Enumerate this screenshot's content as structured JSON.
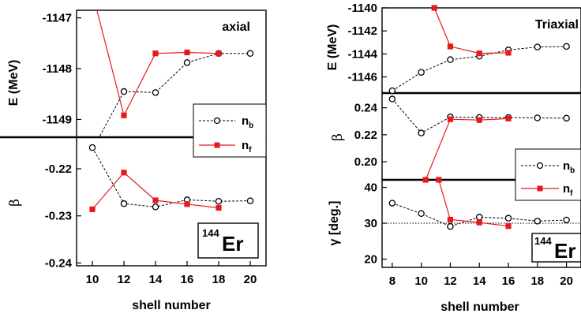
{
  "chart_data": [
    {
      "type": "line",
      "title": "axial",
      "nucleus": {
        "mass": "144",
        "symbol": "Er"
      },
      "xlabel": "shell number",
      "xticks": [
        "10",
        "12",
        "14",
        "16",
        "18",
        "20"
      ],
      "xlim": [
        9,
        21
      ],
      "legend": {
        "placement": "right",
        "entries": [
          {
            "base": "n",
            "sub": "b"
          },
          {
            "base": "n",
            "sub": "f"
          }
        ]
      },
      "panels": [
        {
          "id": "energy",
          "ylabel": "E (MeV)",
          "ylim": [
            -1149.35,
            -1146.85
          ],
          "yticks": [
            "-1147",
            "-1148",
            "-1149"
          ],
          "series": [
            {
              "id": "n_b",
              "style": "open-circle-dashed",
              "color": "#000000",
              "x": [
                10,
                12,
                14,
                16,
                18,
                20
              ],
              "y": [
                -1149.6,
                -1148.45,
                -1148.47,
                -1147.88,
                -1147.7,
                -1147.7
              ]
            },
            {
              "id": "n_f",
              "style": "filled-square-solid",
              "color": "#e8191c",
              "x": [
                10,
                12,
                14,
                16,
                18
              ],
              "y": [
                -1146.5,
                -1148.92,
                -1147.7,
                -1147.68,
                -1147.7
              ]
            }
          ]
        },
        {
          "id": "beta",
          "ylabel": "β",
          "ylim": [
            -0.2406,
            -0.2133
          ],
          "yticks": [
            "-0.22",
            "-0.23",
            "-0.24"
          ],
          "series": [
            {
              "id": "n_b",
              "style": "open-circle-dashed",
              "color": "#000000",
              "x": [
                10,
                12,
                14,
                16,
                18,
                20
              ],
              "y": [
                -0.2155,
                -0.2274,
                -0.2281,
                -0.2266,
                -0.2269,
                -0.2268
              ]
            },
            {
              "id": "n_f",
              "style": "filled-square-solid",
              "color": "#e8191c",
              "x": [
                10,
                12,
                14,
                16,
                18
              ],
              "y": [
                -0.2286,
                -0.2208,
                -0.2267,
                -0.2275,
                -0.2283
              ]
            }
          ]
        }
      ]
    },
    {
      "type": "line",
      "title": "Triaxial",
      "nucleus": {
        "mass": "144",
        "symbol": "Er"
      },
      "xlabel": "shell number",
      "xticks": [
        "8",
        "10",
        "12",
        "14",
        "16",
        "18",
        "20"
      ],
      "xlim": [
        7.3,
        21
      ],
      "legend": {
        "placement": "right",
        "entries": [
          {
            "base": "n",
            "sub": "b"
          },
          {
            "base": "n",
            "sub": "f"
          }
        ]
      },
      "panels": [
        {
          "id": "energy",
          "ylabel": "E (MeV)",
          "ylim": [
            -1147.4,
            -1140
          ],
          "yticks": [
            "-1140",
            "-1142",
            "-1144",
            "-1146"
          ],
          "series": [
            {
              "id": "n_b",
              "style": "open-circle-dashed",
              "color": "#000000",
              "x": [
                8,
                10,
                12,
                14,
                16,
                18,
                20
              ],
              "y": [
                -1147.2,
                -1145.6,
                -1144.5,
                -1144.2,
                -1143.65,
                -1143.4,
                -1143.35
              ]
            },
            {
              "id": "n_f",
              "style": "filled-square-solid",
              "color": "#e8191c",
              "x": [
                10.9,
                12,
                14,
                16
              ],
              "y": [
                -1140,
                -1143.35,
                -1143.95,
                -1143.9
              ]
            }
          ]
        },
        {
          "id": "beta",
          "ylabel": "β",
          "ylim": [
            0.1866,
            0.2509
          ],
          "yticks": [
            "0.24",
            "0.22",
            "0.20"
          ],
          "series": [
            {
              "id": "n_b",
              "style": "open-circle-dashed",
              "color": "#000000",
              "x": [
                8,
                10,
                12,
                14,
                16,
                18,
                20
              ],
              "y": [
                0.2465,
                0.2213,
                0.2332,
                0.2328,
                0.2328,
                0.2325,
                0.2323
              ]
            },
            {
              "id": "n_f",
              "style": "filled-square-solid",
              "color": "#e8191c",
              "x": [
                10.3,
                12,
                14,
                16
              ],
              "y": [
                0.1866,
                0.2315,
                0.2309,
                0.232
              ]
            }
          ]
        },
        {
          "id": "gamma",
          "ylabel": "γ [deg.]",
          "ylim": [
            17.7,
            42.1
          ],
          "yticks": [
            "40",
            "30",
            "20"
          ],
          "reference_line": 30,
          "series": [
            {
              "id": "n_b",
              "style": "open-circle-dashed",
              "color": "#000000",
              "x": [
                8,
                10,
                12,
                14,
                16,
                18,
                20
              ],
              "y": [
                35.6,
                32.7,
                29.1,
                31.7,
                31.4,
                30.6,
                30.9
              ]
            },
            {
              "id": "n_f",
              "style": "filled-square-solid",
              "color": "#e8191c",
              "x": [
                11.2,
                12,
                14,
                16
              ],
              "y": [
                42.1,
                31.0,
                30.2,
                29.2
              ]
            }
          ]
        }
      ]
    }
  ]
}
